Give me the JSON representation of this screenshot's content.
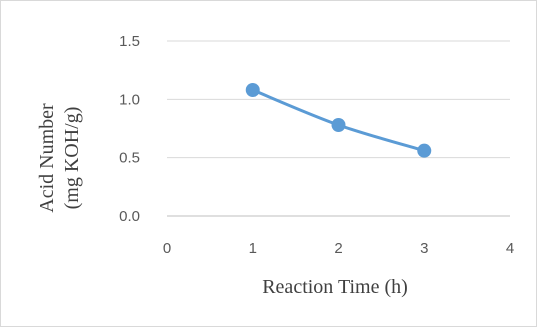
{
  "chart_data": {
    "type": "line",
    "title": "",
    "xlabel": "Reaction Time (h)",
    "ylabel_lines": [
      "Acid Number",
      "(mg KOH/g)"
    ],
    "xlim": [
      0,
      4
    ],
    "ylim": [
      0,
      1.5
    ],
    "x_ticks": [
      "0",
      "1",
      "2",
      "3",
      "4"
    ],
    "y_ticks": [
      "0.0",
      "0.5",
      "1.0",
      "1.5"
    ],
    "grid": "horizontal",
    "legend": "none",
    "series": [
      {
        "x": [
          1,
          2,
          3
        ],
        "values": [
          1.08,
          0.78,
          0.56
        ],
        "color": "#5b9bd5"
      }
    ]
  }
}
